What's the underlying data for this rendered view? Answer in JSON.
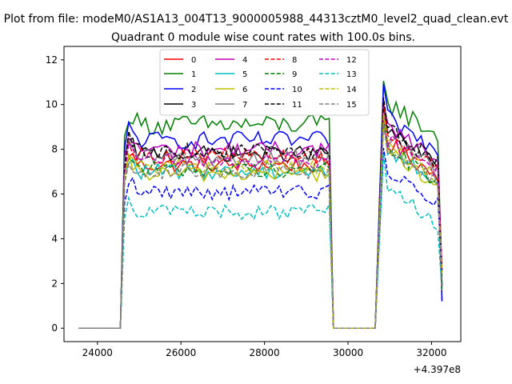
{
  "chart_data": {
    "type": "line",
    "suptitle": "Plot from file: modeM0/AS1A13_004T13_9000005988_44313cztM0_level2_quad_clean.evt",
    "title": "Quadrant 0 module wise count rates with 100.0s bins.",
    "xlabel": "",
    "ylabel": "",
    "x_offset_label": "+4.397e8",
    "x_offset": 439700000,
    "xlim": [
      439723200,
      439732700
    ],
    "ylim": [
      -0.6,
      12.6
    ],
    "xticks": [
      24000,
      26000,
      28000,
      30000,
      32000
    ],
    "yticks": [
      0,
      2,
      4,
      6,
      8,
      10,
      12
    ],
    "grid": false,
    "legend": {
      "placement": "top-center",
      "columns": 4
    },
    "segments": [
      {
        "flat": [
          23550,
          24550
        ]
      },
      {
        "active": [
          24550,
          29650
        ]
      },
      {
        "flat": [
          29650,
          30650
        ]
      },
      {
        "active": [
          30650,
          32250
        ]
      }
    ],
    "series": [
      {
        "name": "0",
        "color": "#ff0000",
        "dash": "solid",
        "level": 7.3,
        "noise": 0.35
      },
      {
        "name": "1",
        "color": "#008000",
        "dash": "solid",
        "level": 9.1,
        "noise": 0.45
      },
      {
        "name": "2",
        "color": "#0000ff",
        "dash": "solid",
        "level": 8.4,
        "noise": 0.4
      },
      {
        "name": "3",
        "color": "#000000",
        "dash": "solid",
        "level": 7.8,
        "noise": 0.35
      },
      {
        "name": "4",
        "color": "#bf00bf",
        "dash": "solid",
        "level": 8.0,
        "noise": 0.35
      },
      {
        "name": "5",
        "color": "#00bfbf",
        "dash": "solid",
        "level": 7.0,
        "noise": 0.35
      },
      {
        "name": "6",
        "color": "#bfbf00",
        "dash": "solid",
        "level": 6.9,
        "noise": 0.35
      },
      {
        "name": "7",
        "color": "#808080",
        "dash": "solid",
        "level": 7.6,
        "noise": 0.4
      },
      {
        "name": "8",
        "color": "#ff0000",
        "dash": "dashed",
        "level": 7.7,
        "noise": 0.35
      },
      {
        "name": "9",
        "color": "#008000",
        "dash": "dashed",
        "level": 7.1,
        "noise": 0.35
      },
      {
        "name": "10",
        "color": "#0000ff",
        "dash": "dashed",
        "level": 6.1,
        "noise": 0.35
      },
      {
        "name": "11",
        "color": "#000000",
        "dash": "dashed",
        "level": 7.9,
        "noise": 0.35
      },
      {
        "name": "12",
        "color": "#bf00bf",
        "dash": "dashed",
        "level": 7.5,
        "noise": 0.35
      },
      {
        "name": "13",
        "color": "#00bfbf",
        "dash": "dashed",
        "level": 5.2,
        "noise": 0.35
      },
      {
        "name": "14",
        "color": "#bfbf00",
        "dash": "dashed",
        "level": 7.2,
        "noise": 0.35
      },
      {
        "name": "15",
        "color": "#808080",
        "dash": "dashed",
        "level": 7.0,
        "noise": 0.35
      }
    ]
  }
}
